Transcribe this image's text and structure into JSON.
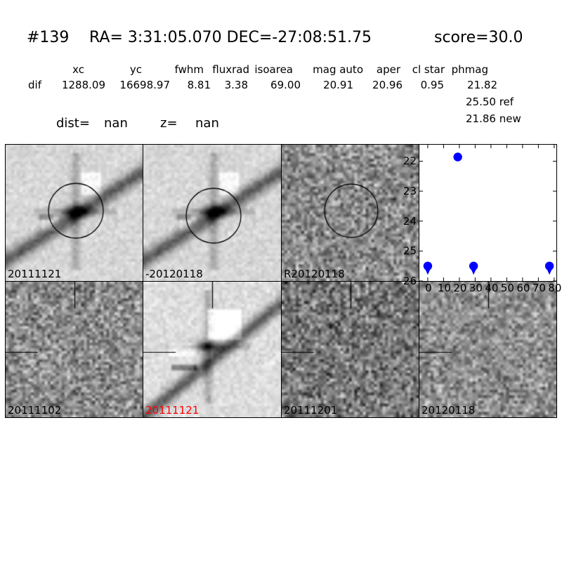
{
  "title": {
    "id": "#139",
    "coords": "RA= 3:31:05.070 DEC=-27:08:51.75",
    "score": "score=30.0"
  },
  "stats": {
    "row_label": "dif",
    "columns": [
      "xc",
      "yc",
      "fwhm",
      "fluxrad",
      "isoarea",
      "mag auto",
      "aper",
      "cl star",
      "phmag"
    ],
    "values": [
      "1288.09",
      "16698.97",
      "8.81",
      "3.38",
      "69.00",
      "20.91",
      "20.96",
      "0.95",
      "21.82"
    ],
    "ref_mag_line": "25.50 ref",
    "new_mag_line": "21.86 new",
    "dist_label": "dist=",
    "dist_value": "nan",
    "z_label": "z=",
    "z_value": "nan"
  },
  "panels": [
    {
      "label": "20111121",
      "label_color": "#000000",
      "annotation": "circle",
      "appearance": "galaxy-streak-light"
    },
    {
      "label": "-20120118",
      "label_color": "#000000",
      "annotation": "circle",
      "appearance": "galaxy-streak-light"
    },
    {
      "label": "R20120118",
      "label_color": "#000000",
      "annotation": "circle",
      "appearance": "noise"
    },
    {
      "label": "20111102",
      "label_color": "#000000",
      "annotation": "crosshair",
      "appearance": "noise"
    },
    {
      "label": "20111121",
      "label_color": "#ff0000",
      "annotation": "crosshair",
      "appearance": "galaxy-streak-light-masked"
    },
    {
      "label": "20111201",
      "label_color": "#000000",
      "annotation": "crosshair",
      "appearance": "noise"
    },
    {
      "label": "20120118",
      "label_color": "#000000",
      "annotation": "crosshair",
      "appearance": "noise"
    }
  ],
  "chart_data": {
    "type": "scatter",
    "title": "",
    "xlabel": "",
    "ylabel": "",
    "x_ticks": [
      0,
      10,
      20,
      30,
      40,
      50,
      60,
      70,
      80
    ],
    "y_ticks": [
      22,
      23,
      24,
      25,
      26
    ],
    "xlim": [
      -5.3,
      81.4
    ],
    "ylim": [
      26,
      21.45
    ],
    "y_axis_inverted": true,
    "grid": false,
    "legend": "none",
    "marker_color": "#0000ff",
    "series": [
      {
        "name": "detection",
        "marker": "circle",
        "points": [
          {
            "x": 19,
            "y": 21.86
          }
        ]
      },
      {
        "name": "upper-limit",
        "marker": "circle-down-arrow",
        "points": [
          {
            "x": 0,
            "y": 25.5
          },
          {
            "x": 29,
            "y": 25.5
          },
          {
            "x": 77,
            "y": 25.5
          }
        ]
      }
    ]
  }
}
